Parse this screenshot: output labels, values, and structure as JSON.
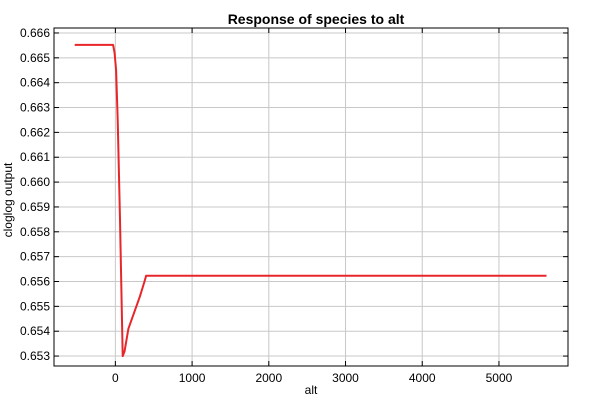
{
  "chart_data": {
    "type": "line",
    "title": "Response of species to alt",
    "xlabel": "alt",
    "ylabel": "cloglog output",
    "xlim": [
      -800,
      5900
    ],
    "ylim": [
      0.6526,
      0.6662
    ],
    "xticks": [
      0,
      1000,
      2000,
      3000,
      4000,
      5000
    ],
    "xtick_labels": [
      "0",
      "1000",
      "2000",
      "3000",
      "4000",
      "5000"
    ],
    "yticks": [
      0.653,
      0.654,
      0.655,
      0.656,
      0.657,
      0.658,
      0.659,
      0.66,
      0.661,
      0.662,
      0.663,
      0.664,
      0.665,
      0.666
    ],
    "ytick_labels": [
      "0.653",
      "0.654",
      "0.655",
      "0.656",
      "0.657",
      "0.658",
      "0.659",
      "0.660",
      "0.661",
      "0.662",
      "0.663",
      "0.664",
      "0.665",
      "0.666"
    ],
    "grid": true,
    "series": [
      {
        "color": "#e8262a",
        "points": [
          [
            -530,
            0.66552
          ],
          [
            -30,
            0.66552
          ],
          [
            -10,
            0.6652
          ],
          [
            10,
            0.6645
          ],
          [
            30,
            0.6625
          ],
          [
            60,
            0.6585
          ],
          [
            95,
            0.653
          ],
          [
            120,
            0.6532
          ],
          [
            170,
            0.6541
          ],
          [
            250,
            0.6548
          ],
          [
            320,
            0.6554
          ],
          [
            380,
            0.656
          ],
          [
            400,
            0.65623
          ],
          [
            5620,
            0.65623
          ]
        ]
      }
    ]
  }
}
